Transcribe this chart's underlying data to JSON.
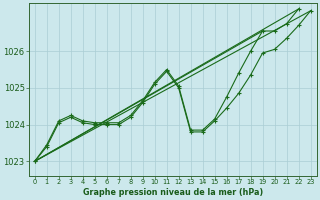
{
  "title": "Graphe pression niveau de la mer (hPa)",
  "bg_color": "#cce8ec",
  "grid_color": "#aaced4",
  "line_color": "#1a6b1a",
  "marker_color": "#1a6b1a",
  "xlim": [
    -0.5,
    23.5
  ],
  "ylim": [
    1022.6,
    1027.3
  ],
  "yticks": [
    1023,
    1024,
    1025,
    1026
  ],
  "xticks": [
    0,
    1,
    2,
    3,
    4,
    5,
    6,
    7,
    8,
    9,
    10,
    11,
    12,
    13,
    14,
    15,
    16,
    17,
    18,
    19,
    20,
    21,
    22,
    23
  ],
  "series": [
    {
      "x": [
        0,
        1,
        2,
        3,
        4,
        5,
        6,
        7,
        8,
        9,
        10,
        11,
        12,
        13,
        14,
        15,
        16,
        17,
        18,
        19,
        20,
        21,
        22,
        23
      ],
      "y": [
        1023.0,
        1023.4,
        1024.05,
        1024.2,
        1024.05,
        1024.0,
        1024.0,
        1024.0,
        1024.2,
        1024.6,
        1025.1,
        1025.45,
        1025.0,
        1023.8,
        1023.8,
        1024.1,
        1024.45,
        1024.85,
        1025.35,
        1025.95,
        1026.05,
        1026.35,
        1026.7,
        1027.1
      ],
      "marker": true
    },
    {
      "x": [
        0,
        1,
        2,
        3,
        4,
        5,
        6,
        7,
        8,
        9,
        10,
        11,
        12,
        13,
        14,
        15,
        16,
        17,
        18,
        19,
        20,
        21,
        22
      ],
      "y": [
        1023.0,
        1023.45,
        1024.1,
        1024.25,
        1024.1,
        1024.05,
        1024.05,
        1024.05,
        1024.25,
        1024.65,
        1025.15,
        1025.5,
        1025.05,
        1023.85,
        1023.85,
        1024.15,
        1024.75,
        1025.4,
        1026.0,
        1026.55,
        1026.55,
        1026.75,
        1027.15
      ],
      "marker": true
    },
    {
      "x": [
        0,
        23
      ],
      "y": [
        1023.0,
        1027.1
      ],
      "marker": false
    },
    {
      "x": [
        0,
        19
      ],
      "y": [
        1023.0,
        1026.55
      ],
      "marker": false
    },
    {
      "x": [
        0,
        22
      ],
      "y": [
        1023.0,
        1027.15
      ],
      "marker": false
    }
  ]
}
